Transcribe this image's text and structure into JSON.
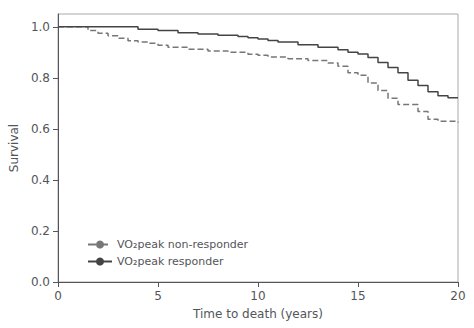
{
  "chart_data": {
    "type": "line",
    "step": true,
    "xlabel": "Time to death (years)",
    "ylabel": "Survival",
    "xlim": [
      0,
      20
    ],
    "ylim": [
      0.0,
      1.05
    ],
    "xticks": [
      0,
      5,
      10,
      15,
      20
    ],
    "yticks": [
      {
        "value": 0.0,
        "label": "0.0"
      },
      0.2,
      0.4,
      0.6,
      0.8,
      {
        "value": 1.0,
        "label": "1.0"
      }
    ],
    "grid": false,
    "legend": "lower left",
    "series": [
      {
        "name": "VO₂peak non-responder",
        "color": "#777777",
        "line_style": "dashed",
        "x": [
          0,
          1.5,
          2.0,
          2.5,
          3.0,
          3.5,
          4.0,
          4.5,
          5.0,
          5.5,
          6.5,
          7.5,
          8.5,
          9.5,
          10.0,
          10.5,
          11.5,
          12.5,
          13.5,
          14.0,
          14.5,
          15.0,
          15.5,
          16.0,
          16.5,
          17.0,
          18.0,
          18.5,
          19.0,
          20.0
        ],
        "values": [
          1.0,
          0.985,
          0.975,
          0.965,
          0.955,
          0.945,
          0.94,
          0.935,
          0.928,
          0.92,
          0.912,
          0.905,
          0.9,
          0.892,
          0.888,
          0.882,
          0.875,
          0.868,
          0.858,
          0.845,
          0.82,
          0.81,
          0.78,
          0.75,
          0.72,
          0.695,
          0.668,
          0.638,
          0.63,
          0.625
        ]
      },
      {
        "name": "VO₂peak responder",
        "color": "#444444",
        "line_style": "solid",
        "x": [
          0,
          3.5,
          4.0,
          5.0,
          6.0,
          7.0,
          8.0,
          9.0,
          9.5,
          10.0,
          10.5,
          11.0,
          12.0,
          13.0,
          14.0,
          14.5,
          15.0,
          15.5,
          16.0,
          16.5,
          17.0,
          17.5,
          18.0,
          18.5,
          19.0,
          19.5,
          20.0
        ],
        "values": [
          1.0,
          1.0,
          0.99,
          0.985,
          0.977,
          0.972,
          0.967,
          0.962,
          0.957,
          0.952,
          0.946,
          0.94,
          0.93,
          0.92,
          0.91,
          0.9,
          0.893,
          0.88,
          0.86,
          0.84,
          0.82,
          0.79,
          0.77,
          0.745,
          0.73,
          0.722,
          0.72
        ]
      }
    ]
  }
}
